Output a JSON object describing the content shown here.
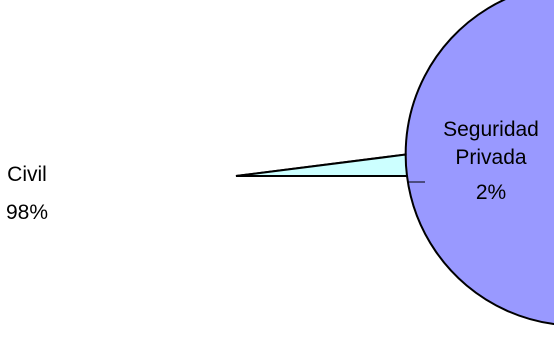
{
  "chart_data": {
    "type": "pie",
    "slices": [
      {
        "label": "Civil",
        "value_label": "98%",
        "value": 98,
        "color": "#9999ff"
      },
      {
        "label": "Seguridad Privada",
        "label_lines": [
          "Seguridad",
          "Privada"
        ],
        "value_label": "2%",
        "value": 2,
        "color": "#ccffff"
      }
    ],
    "start_angle_deg": 0,
    "direction": "counterclockwise",
    "outline_color": "#000000"
  }
}
